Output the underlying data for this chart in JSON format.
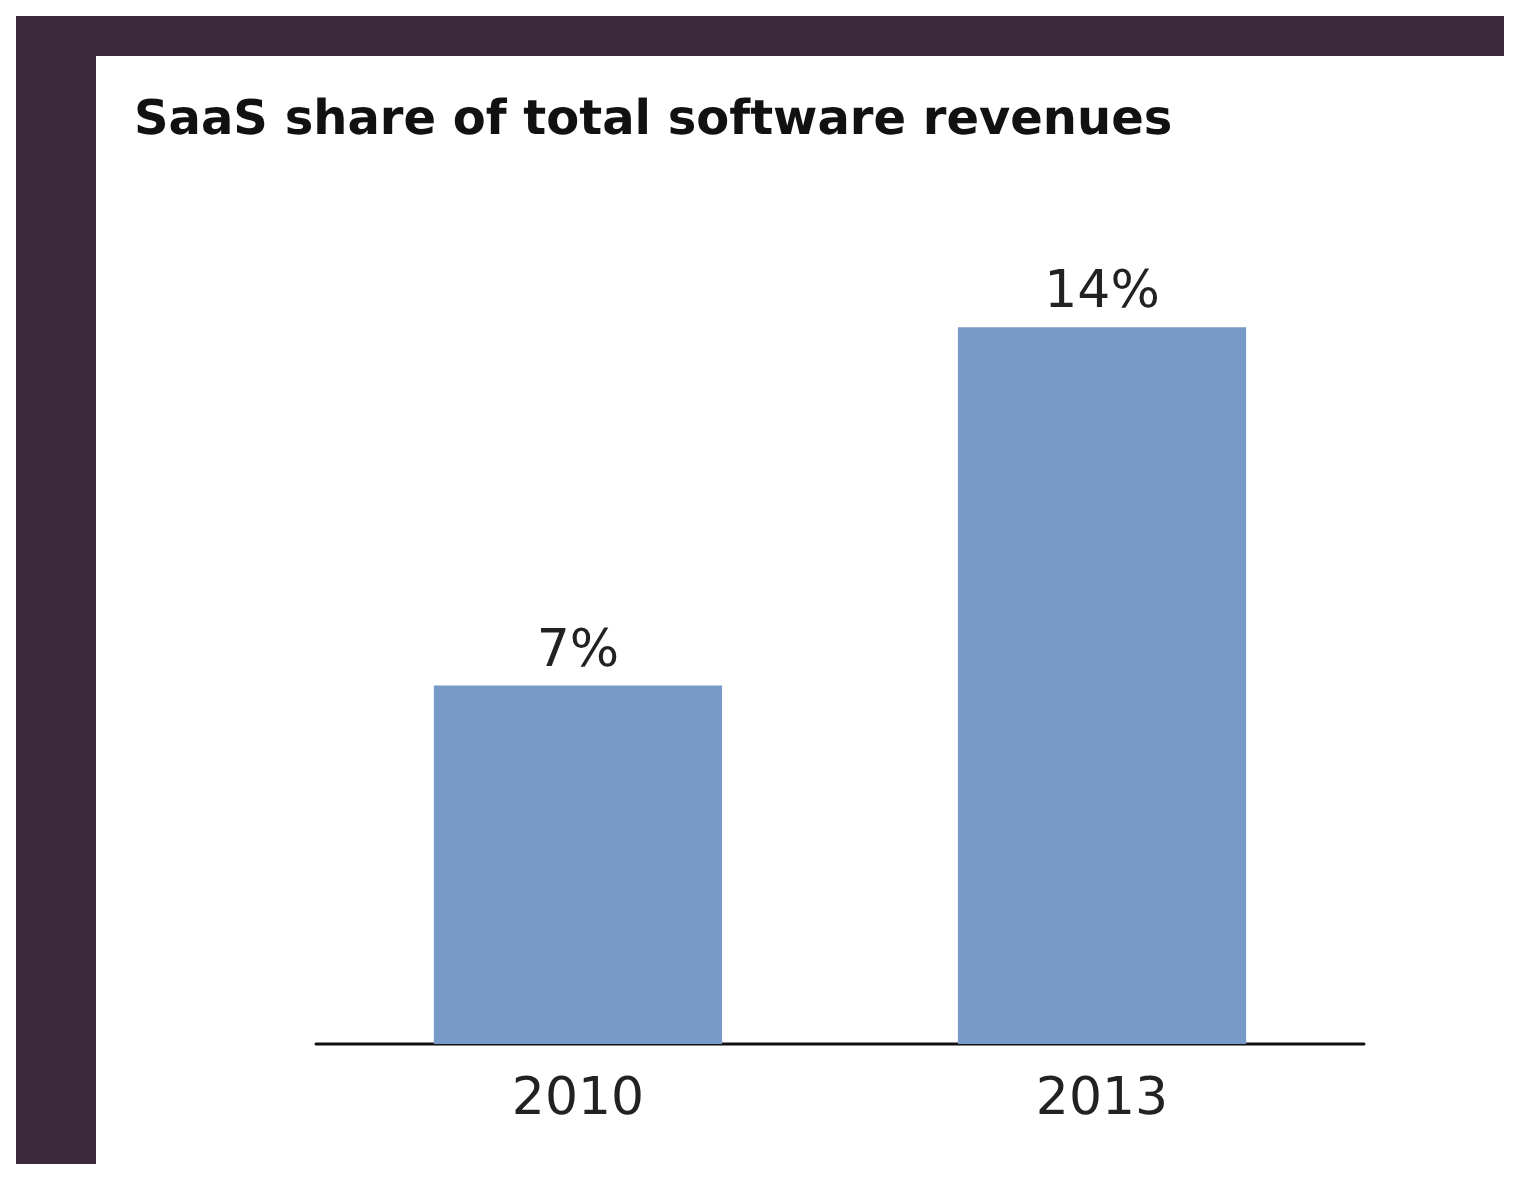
{
  "chart_data": {
    "type": "bar",
    "title": "SaaS share of total software revenues",
    "categories": [
      "2010",
      "2013"
    ],
    "values": [
      7,
      14
    ],
    "value_labels": [
      "7%",
      "14%"
    ],
    "color": "#779ac9"
  }
}
